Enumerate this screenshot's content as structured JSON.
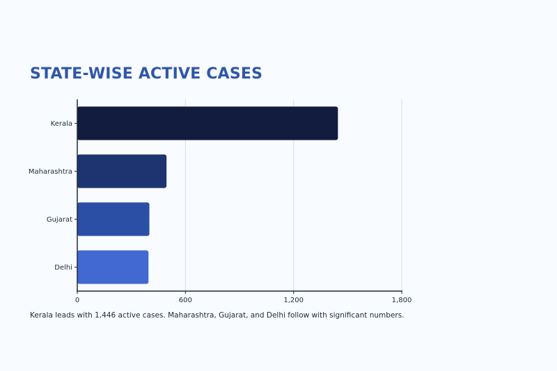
{
  "chart_data": {
    "type": "bar",
    "orientation": "horizontal",
    "title": "STATE-WISE ACTIVE CASES",
    "categories": [
      "Kerala",
      "Maharashtra",
      "Gujarat",
      "Delhi"
    ],
    "values": [
      1446,
      495,
      400,
      395
    ],
    "xlim": [
      0,
      1800
    ],
    "xticks": [
      0,
      600,
      1200,
      1800
    ],
    "xtick_labels": [
      "0",
      "600",
      "1,200",
      "1,800"
    ],
    "grid": "vertical",
    "bar_colors": [
      "#111c3e",
      "#1e3470",
      "#2c4fa6",
      "#4169d1"
    ]
  },
  "caption": "Kerala leads with 1,446 active cases. Maharashtra, Gujarat, and Delhi follow with significant numbers."
}
